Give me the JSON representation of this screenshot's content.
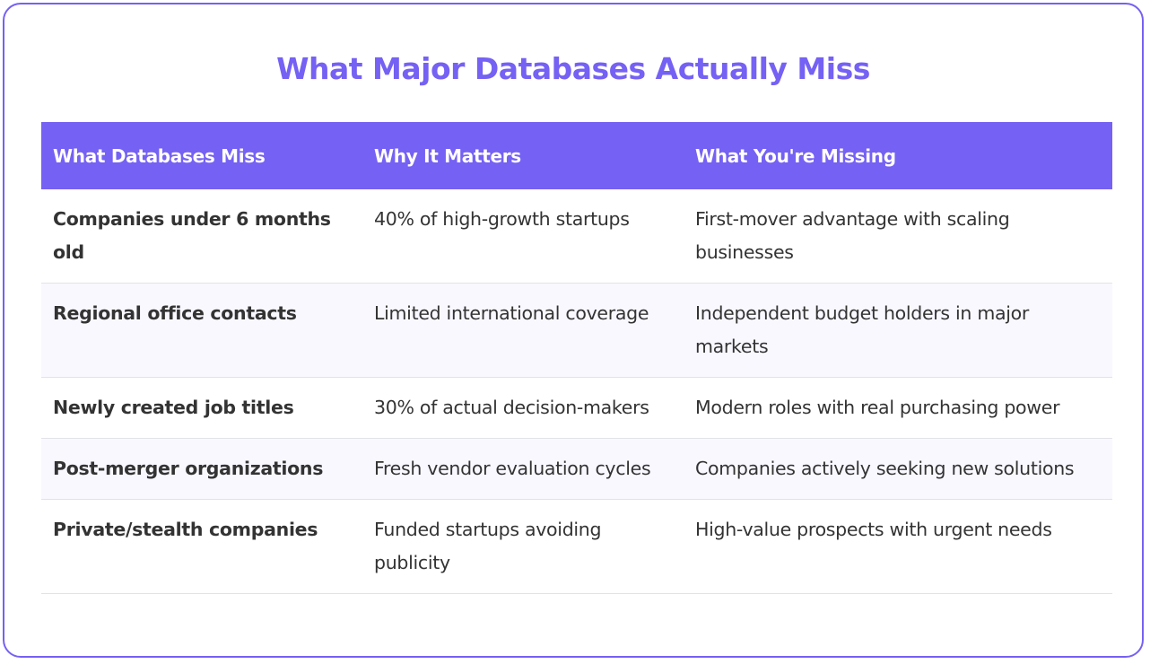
{
  "title": "What Major Databases Actually Miss",
  "colors": {
    "accent": "#7561f3",
    "text": "#333333",
    "row_alt": "#f9f8ff"
  },
  "table": {
    "headers": [
      "What Databases Miss",
      "Why It Matters",
      "What You're Missing"
    ],
    "rows": [
      [
        "Companies under 6 months old",
        "40% of high-growth startups",
        "First-mover advantage with scaling businesses"
      ],
      [
        "Regional office contacts",
        "Limited international coverage",
        "Independent budget holders in major markets"
      ],
      [
        "Newly created job titles",
        "30% of actual decision-makers",
        "Modern roles with real purchasing power"
      ],
      [
        "Post-merger organizations",
        "Fresh vendor evaluation cycles",
        "Companies actively seeking new solutions"
      ],
      [
        "Private/stealth companies",
        "Funded startups avoiding publicity",
        "High-value prospects with urgent needs"
      ]
    ]
  }
}
